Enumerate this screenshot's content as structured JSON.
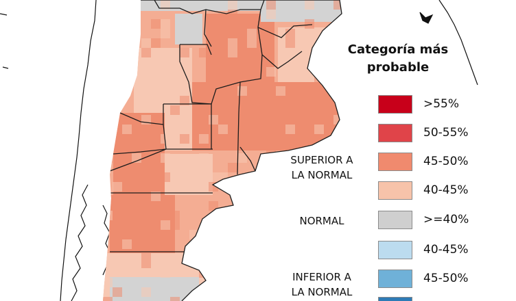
{
  "legend": {
    "title_line1": "Categoría más",
    "title_line2": "probable",
    "items": [
      {
        "label": ">55%",
        "color": "#c8001a"
      },
      {
        "label": "50-55%",
        "color": "#e04449"
      },
      {
        "label": "45-50%",
        "color": "#f08a6e"
      },
      {
        "label": "40-45%",
        "color": "#f7c3aa"
      },
      {
        "label": ">=40%",
        "color": "#cfcfcf"
      },
      {
        "label": "40-45%",
        "color": "#bcdcef"
      },
      {
        "label": "45-50%",
        "color": "#6fb1d8"
      },
      {
        "label": "",
        "color": "#2e7bb6"
      }
    ],
    "groups": {
      "superior_line1": "SUPERIOR A",
      "superior_line2": "LA NORMAL",
      "normal": "NORMAL",
      "inferior_line1": "INFERIOR A",
      "inferior_line2": "LA NORMAL"
    }
  },
  "map_colors": {
    "strong_above": "#ee8c6f",
    "above": "#f4ad93",
    "light_above": "#f7c8b3",
    "normal": "#d3d3d3",
    "border": "#1c1c1c"
  }
}
